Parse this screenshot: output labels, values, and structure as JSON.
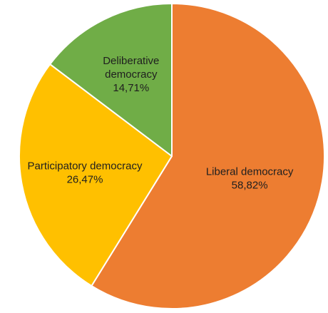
{
  "chart_data": {
    "type": "pie",
    "title": "",
    "slices": [
      {
        "label_lines": [
          "Liberal democracy"
        ],
        "value": 58.82,
        "value_label": "58,82%",
        "color": "#ED7D31"
      },
      {
        "label_lines": [
          "Participatory democracy"
        ],
        "value": 26.47,
        "value_label": "26,47%",
        "color": "#FFC000"
      },
      {
        "label_lines": [
          "Deliberative",
          "democracy"
        ],
        "value": 14.71,
        "value_label": "14,71%",
        "color": "#70AD47"
      }
    ],
    "start_angle_deg": 0,
    "direction": "clockwise",
    "slice_border_color": "#FFFFFF",
    "legend": "none",
    "data_labels": "inside"
  }
}
